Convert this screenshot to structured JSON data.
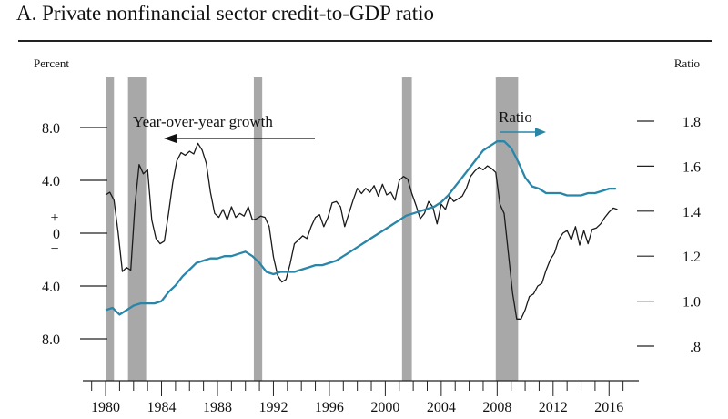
{
  "header": {
    "title": "A.    Private nonfinancial sector credit-to-GDP ratio"
  },
  "chart_data": {
    "type": "line",
    "title": "Private nonfinancial sector credit-to-GDP ratio",
    "panel_label": "A.",
    "left_axis": {
      "label": "Percent",
      "ylim": [
        -10,
        10
      ],
      "ticks": [
        {
          "value": 8,
          "label": "8.0"
        },
        {
          "value": 4,
          "label": "4.0"
        },
        {
          "value": 0,
          "label": "0"
        },
        {
          "value": -4,
          "label": "4.0"
        },
        {
          "value": -8,
          "label": "8.0"
        }
      ],
      "plus_sign": "+",
      "minus_sign": "−"
    },
    "right_axis": {
      "label": "Ratio",
      "ylim": [
        0.7,
        1.95
      ],
      "ticks": [
        {
          "value": 1.8,
          "label": "1.8"
        },
        {
          "value": 1.6,
          "label": "1.6"
        },
        {
          "value": 1.4,
          "label": "1.4"
        },
        {
          "value": 1.2,
          "label": "1.2"
        },
        {
          "value": 1.0,
          "label": "1.0"
        },
        {
          "value": 0.8,
          "label": ".8"
        }
      ]
    },
    "x_axis": {
      "xlim": [
        1978.5,
        2018
      ],
      "tick_labels": [
        "1980",
        "1984",
        "1988",
        "1992",
        "1996",
        "2000",
        "2004",
        "2008",
        "2012",
        "2016"
      ]
    },
    "recessions": [
      [
        1980.0,
        1980.6
      ],
      [
        1981.6,
        1982.9
      ],
      [
        1990.6,
        1991.2
      ],
      [
        2001.2,
        2001.9
      ],
      [
        2007.9,
        2009.5
      ]
    ],
    "annotations": [
      {
        "text": "Year-over-year growth",
        "arrow": "left"
      },
      {
        "text": "Ratio",
        "arrow": "right"
      }
    ],
    "series": [
      {
        "name": "Year-over-year growth",
        "axis": "left",
        "color": "#1a1a1a",
        "x": [
          1980.0,
          1980.3,
          1980.6,
          1980.9,
          1981.2,
          1981.5,
          1981.8,
          1982.1,
          1982.4,
          1982.7,
          1983.0,
          1983.3,
          1983.6,
          1983.9,
          1984.2,
          1984.5,
          1984.8,
          1985.1,
          1985.4,
          1985.7,
          1986.0,
          1986.3,
          1986.6,
          1986.9,
          1987.2,
          1987.5,
          1987.8,
          1988.1,
          1988.4,
          1988.7,
          1989.0,
          1989.3,
          1989.6,
          1989.9,
          1990.2,
          1990.5,
          1990.8,
          1991.1,
          1991.4,
          1991.7,
          1992.0,
          1992.3,
          1992.6,
          1992.9,
          1993.2,
          1993.5,
          1993.8,
          1994.1,
          1994.4,
          1994.7,
          1995.0,
          1995.3,
          1995.6,
          1995.9,
          1996.2,
          1996.5,
          1996.8,
          1997.1,
          1997.4,
          1997.7,
          1998.0,
          1998.3,
          1998.6,
          1998.9,
          1999.2,
          1999.5,
          1999.8,
          2000.1,
          2000.4,
          2000.7,
          2001.0,
          2001.3,
          2001.6,
          2001.9,
          2002.2,
          2002.5,
          2002.8,
          2003.1,
          2003.4,
          2003.7,
          2004.0,
          2004.3,
          2004.6,
          2004.9,
          2005.2,
          2005.5,
          2005.8,
          2006.1,
          2006.4,
          2006.7,
          2007.0,
          2007.3,
          2007.6,
          2007.9,
          2008.2,
          2008.5,
          2008.8,
          2009.1,
          2009.4,
          2009.7,
          2010.0,
          2010.3,
          2010.6,
          2010.9,
          2011.2,
          2011.5,
          2011.8,
          2012.1,
          2012.4,
          2012.7,
          2013.0,
          2013.3,
          2013.6,
          2013.9,
          2014.2,
          2014.5,
          2014.8,
          2015.1,
          2015.4,
          2015.7,
          2016.0,
          2016.3,
          2016.6
        ],
        "values": [
          2.9,
          3.1,
          2.5,
          0.0,
          -2.9,
          -2.6,
          -2.8,
          2.1,
          5.2,
          4.5,
          4.8,
          1.0,
          -0.4,
          -0.8,
          -0.6,
          1.5,
          3.8,
          5.5,
          6.1,
          5.9,
          6.2,
          6.0,
          6.8,
          6.3,
          5.3,
          3.1,
          1.5,
          1.2,
          1.8,
          1.0,
          2.0,
          1.2,
          1.5,
          1.3,
          2.0,
          1.0,
          1.1,
          1.3,
          1.2,
          0.5,
          -1.8,
          -3.2,
          -3.7,
          -3.5,
          -2.3,
          -0.8,
          -0.5,
          -0.2,
          -0.4,
          0.5,
          1.2,
          1.4,
          0.5,
          1.2,
          2.3,
          2.4,
          2.0,
          0.5,
          1.5,
          2.5,
          3.4,
          3.0,
          3.4,
          3.1,
          3.6,
          2.8,
          3.7,
          2.9,
          3.1,
          2.5,
          4.0,
          4.3,
          4.1,
          3.0,
          2.1,
          1.1,
          1.5,
          2.4,
          2.0,
          0.7,
          2.2,
          1.8,
          2.8,
          2.4,
          2.6,
          2.8,
          3.4,
          4.3,
          4.7,
          5.0,
          4.8,
          5.1,
          4.9,
          4.6,
          2.2,
          1.5,
          -1.5,
          -4.5,
          -6.5,
          -6.5,
          -5.8,
          -4.8,
          -4.6,
          -4.0,
          -3.8,
          -2.8,
          -2.0,
          -1.5,
          -0.5,
          0.0,
          0.2,
          -0.5,
          0.5,
          -0.9,
          0.2,
          -0.8,
          0.3,
          0.4,
          0.7,
          1.2,
          1.6,
          1.9,
          1.8
        ]
      },
      {
        "name": "Ratio",
        "axis": "right",
        "color": "#2a86a8",
        "x": [
          1980.0,
          1980.5,
          1981.0,
          1981.5,
          1982.0,
          1982.5,
          1983.0,
          1983.5,
          1984.0,
          1984.5,
          1985.0,
          1985.5,
          1986.0,
          1986.5,
          1987.0,
          1987.5,
          1988.0,
          1988.5,
          1989.0,
          1989.5,
          1990.0,
          1990.5,
          1991.0,
          1991.5,
          1992.0,
          1992.5,
          1993.0,
          1993.5,
          1994.0,
          1994.5,
          1995.0,
          1995.5,
          1996.0,
          1996.5,
          1997.0,
          1997.5,
          1998.0,
          1998.5,
          1999.0,
          1999.5,
          2000.0,
          2000.5,
          2001.0,
          2001.5,
          2002.0,
          2002.5,
          2003.0,
          2003.5,
          2004.0,
          2004.5,
          2005.0,
          2005.5,
          2006.0,
          2006.5,
          2007.0,
          2007.5,
          2008.0,
          2008.5,
          2009.0,
          2009.5,
          2010.0,
          2010.5,
          2011.0,
          2011.5,
          2012.0,
          2012.5,
          2013.0,
          2013.5,
          2014.0,
          2014.5,
          2015.0,
          2015.5,
          2016.0,
          2016.5
        ],
        "values": [
          0.96,
          0.97,
          0.94,
          0.96,
          0.98,
          0.99,
          0.99,
          0.99,
          1.0,
          1.04,
          1.07,
          1.11,
          1.14,
          1.17,
          1.18,
          1.19,
          1.19,
          1.2,
          1.2,
          1.21,
          1.22,
          1.2,
          1.17,
          1.13,
          1.12,
          1.13,
          1.13,
          1.13,
          1.14,
          1.15,
          1.16,
          1.16,
          1.17,
          1.18,
          1.2,
          1.22,
          1.24,
          1.26,
          1.28,
          1.3,
          1.32,
          1.34,
          1.36,
          1.38,
          1.39,
          1.4,
          1.41,
          1.42,
          1.44,
          1.47,
          1.51,
          1.55,
          1.59,
          1.63,
          1.67,
          1.69,
          1.71,
          1.71,
          1.68,
          1.62,
          1.55,
          1.51,
          1.5,
          1.48,
          1.48,
          1.48,
          1.47,
          1.47,
          1.47,
          1.48,
          1.48,
          1.49,
          1.5,
          1.5
        ]
      }
    ]
  }
}
